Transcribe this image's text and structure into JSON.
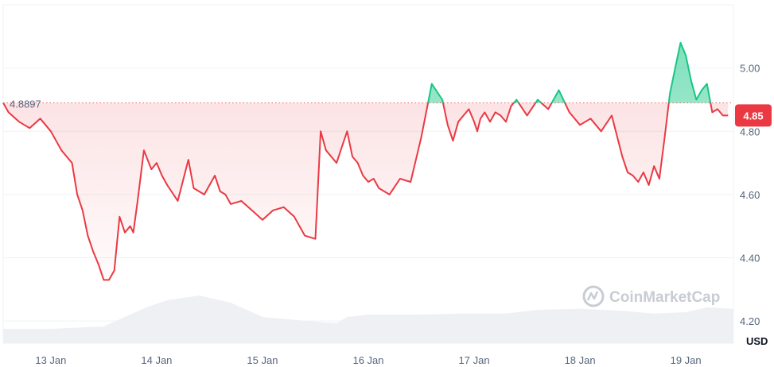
{
  "chart_data": {
    "type": "line",
    "title": "",
    "xlabel": "",
    "ylabel": "",
    "y_unit_label": "USD",
    "ylim": [
      4.1,
      5.2
    ],
    "y_ticks": [
      "4.20",
      "4.40",
      "4.60",
      "4.80",
      "5.00"
    ],
    "y_tick_values": [
      4.2,
      4.4,
      4.6,
      4.8,
      5.0
    ],
    "x_tick_labels": [
      "13 Jan",
      "14 Jan",
      "15 Jan",
      "16 Jan",
      "17 Jan",
      "18 Jan",
      "19 Jan"
    ],
    "x_tick_positions": [
      1,
      2,
      3,
      4,
      5,
      6,
      7
    ],
    "xlim": [
      0.55,
      7.45
    ],
    "baseline_value": 4.8897,
    "baseline_label": "4.8897",
    "current_value": 4.85,
    "current_label": "4.85",
    "colors": {
      "above": "#16c784",
      "below": "#ea3943"
    },
    "watermark": "CoinMarketCap",
    "grid": true,
    "price_series": {
      "name": "",
      "x": [
        0.55,
        0.6,
        0.7,
        0.8,
        0.9,
        1.0,
        1.1,
        1.2,
        1.25,
        1.3,
        1.35,
        1.4,
        1.45,
        1.5,
        1.55,
        1.6,
        1.65,
        1.7,
        1.75,
        1.78,
        1.82,
        1.88,
        1.95,
        2.0,
        2.05,
        2.1,
        2.2,
        2.3,
        2.35,
        2.45,
        2.55,
        2.6,
        2.65,
        2.7,
        2.8,
        2.9,
        3.0,
        3.1,
        3.2,
        3.3,
        3.4,
        3.5,
        3.55,
        3.6,
        3.65,
        3.7,
        3.75,
        3.8,
        3.85,
        3.9,
        3.95,
        4.0,
        4.05,
        4.1,
        4.2,
        4.3,
        4.4,
        4.5,
        4.6,
        4.7,
        4.75,
        4.8,
        4.85,
        4.9,
        4.95,
        5.0,
        5.03,
        5.06,
        5.1,
        5.15,
        5.2,
        5.25,
        5.3,
        5.35,
        5.4,
        5.5,
        5.6,
        5.7,
        5.8,
        5.9,
        6.0,
        6.1,
        6.2,
        6.3,
        6.4,
        6.45,
        6.5,
        6.55,
        6.6,
        6.65,
        6.7,
        6.75,
        6.8,
        6.85,
        6.9,
        6.95,
        7.0,
        7.05,
        7.1,
        7.15,
        7.2,
        7.25,
        7.3,
        7.35,
        7.4
      ],
      "values": [
        4.89,
        4.86,
        4.83,
        4.81,
        4.84,
        4.8,
        4.74,
        4.7,
        4.6,
        4.55,
        4.47,
        4.42,
        4.38,
        4.33,
        4.33,
        4.36,
        4.53,
        4.48,
        4.5,
        4.48,
        4.58,
        4.74,
        4.68,
        4.7,
        4.66,
        4.63,
        4.58,
        4.71,
        4.62,
        4.6,
        4.66,
        4.61,
        4.6,
        4.57,
        4.58,
        4.55,
        4.52,
        4.55,
        4.56,
        4.53,
        4.47,
        4.46,
        4.8,
        4.74,
        4.72,
        4.7,
        4.75,
        4.8,
        4.72,
        4.7,
        4.66,
        4.64,
        4.65,
        4.62,
        4.6,
        4.65,
        4.64,
        4.78,
        4.95,
        4.9,
        4.82,
        4.77,
        4.83,
        4.85,
        4.87,
        4.83,
        4.8,
        4.84,
        4.86,
        4.83,
        4.86,
        4.85,
        4.83,
        4.88,
        4.9,
        4.85,
        4.9,
        4.87,
        4.93,
        4.86,
        4.82,
        4.84,
        4.8,
        4.85,
        4.72,
        4.67,
        4.66,
        4.64,
        4.67,
        4.63,
        4.69,
        4.65,
        4.78,
        4.92,
        5.0,
        5.08,
        5.04,
        4.96,
        4.9,
        4.93,
        4.95,
        4.86,
        4.87,
        4.85,
        4.85
      ]
    },
    "volume_series": {
      "name": "",
      "x": [
        0.55,
        1.0,
        1.5,
        1.9,
        2.1,
        2.4,
        2.7,
        3.0,
        3.5,
        3.7,
        3.8,
        4.0,
        4.5,
        4.9,
        5.3,
        5.6,
        6.0,
        6.4,
        6.7,
        7.0,
        7.2,
        7.45
      ],
      "values": [
        0.3,
        0.3,
        0.35,
        0.75,
        0.9,
        1.0,
        0.85,
        0.55,
        0.45,
        0.42,
        0.55,
        0.6,
        0.6,
        0.62,
        0.62,
        0.7,
        0.72,
        0.68,
        0.62,
        0.65,
        0.75,
        0.72
      ]
    }
  }
}
